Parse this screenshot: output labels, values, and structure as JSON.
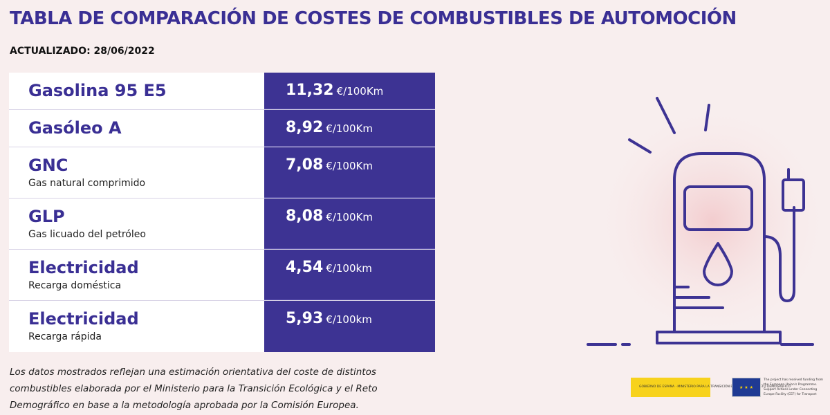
{
  "title": "TABLA DE COMPARACIÓN DE COSTES DE COMBUSTIBLES DE AUTOMOCIÓN",
  "updated": "ACTUALIZADO: 28/06/2022",
  "rows": [
    {
      "name": "Gasolina 95 E5",
      "sub": "",
      "price": "11,32",
      "unit": "€/100Km"
    },
    {
      "name": "Gasóleo A",
      "sub": "",
      "price": "8,92",
      "unit": "€/100Km"
    },
    {
      "name": "GNC",
      "sub": "Gas natural comprimido",
      "price": "7,08",
      "unit": "€/100Km"
    },
    {
      "name": "GLP",
      "sub": "Gas licuado del petróleo",
      "price": "8,08",
      "unit": "€/100Km"
    },
    {
      "name": "Electricidad",
      "sub": "Recarga doméstica",
      "price": "4,54",
      "unit": "€/100km"
    },
    {
      "name": "Electricidad",
      "sub": "Recarga rápida",
      "price": "5,93",
      "unit": "€/100km"
    }
  ],
  "footnote": "Los datos mostrados reflejan una estimación orientativa del coste de distintos combustibles elaborada por el Ministerio para la Transición Ecológica y el Reto Demográfico en base a la metodología aprobada por la Comisión Europea.",
  "logos": {
    "spain_gov": "GOBIERNO DE ESPAÑA · MINISTERIO PARA LA TRANSICIÓN ECOLÓGICA Y EL RETO DEMOGRÁFICO",
    "eu_text": "The project has received funding from the European Union's Programme. Support Actions under Connecting Europe Facility (CEF) for Transport"
  },
  "colors": {
    "accent": "#3d3393",
    "title": "#3a2f94",
    "background": "#f8eeee"
  },
  "icon": "fuel-pump-icon"
}
